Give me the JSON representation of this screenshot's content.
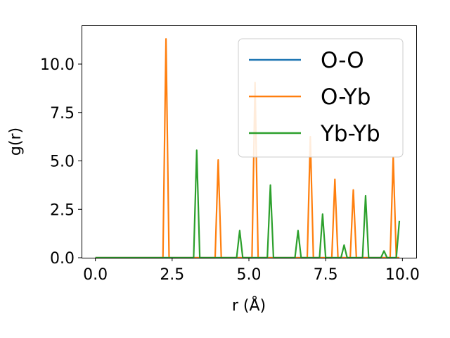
{
  "chart_data": {
    "type": "line",
    "xlabel": "r (Å)",
    "ylabel": "g(r)",
    "xlim": [
      -0.45,
      10.45
    ],
    "ylim": [
      0,
      12
    ],
    "xticks": [
      0,
      2.5,
      5,
      7.5,
      10
    ],
    "xtick_labels": [
      "0.0",
      "2.5",
      "5.0",
      "7.5",
      "10.0"
    ],
    "yticks": [
      0,
      2.5,
      5,
      7.5,
      10
    ],
    "ytick_labels": [
      "0.0",
      "2.5",
      "5.0",
      "7.5",
      "10.0"
    ],
    "grid": false,
    "legend_position": "top-right",
    "x_range": [
      0,
      9.9
    ],
    "x_step": 0.1,
    "series": [
      {
        "name": "O-O",
        "color": "#1f77b4",
        "peaks": []
      },
      {
        "name": "O-Yb",
        "color": "#ff7f0e",
        "peaks": [
          [
            2.3,
            11.3
          ],
          [
            4.0,
            5.05
          ],
          [
            5.2,
            9.05
          ],
          [
            7.0,
            6.25
          ],
          [
            7.8,
            4.05
          ],
          [
            8.4,
            3.5
          ],
          [
            9.7,
            5.2
          ]
        ]
      },
      {
        "name": "Yb-Yb",
        "color": "#2ca02c",
        "peaks": [
          [
            3.3,
            5.55
          ],
          [
            4.7,
            1.4
          ],
          [
            5.7,
            3.75
          ],
          [
            6.6,
            1.4
          ],
          [
            7.4,
            2.25
          ],
          [
            8.1,
            0.65
          ],
          [
            8.8,
            3.2
          ],
          [
            9.4,
            0.35
          ],
          [
            9.9,
            1.9
          ]
        ]
      }
    ]
  }
}
